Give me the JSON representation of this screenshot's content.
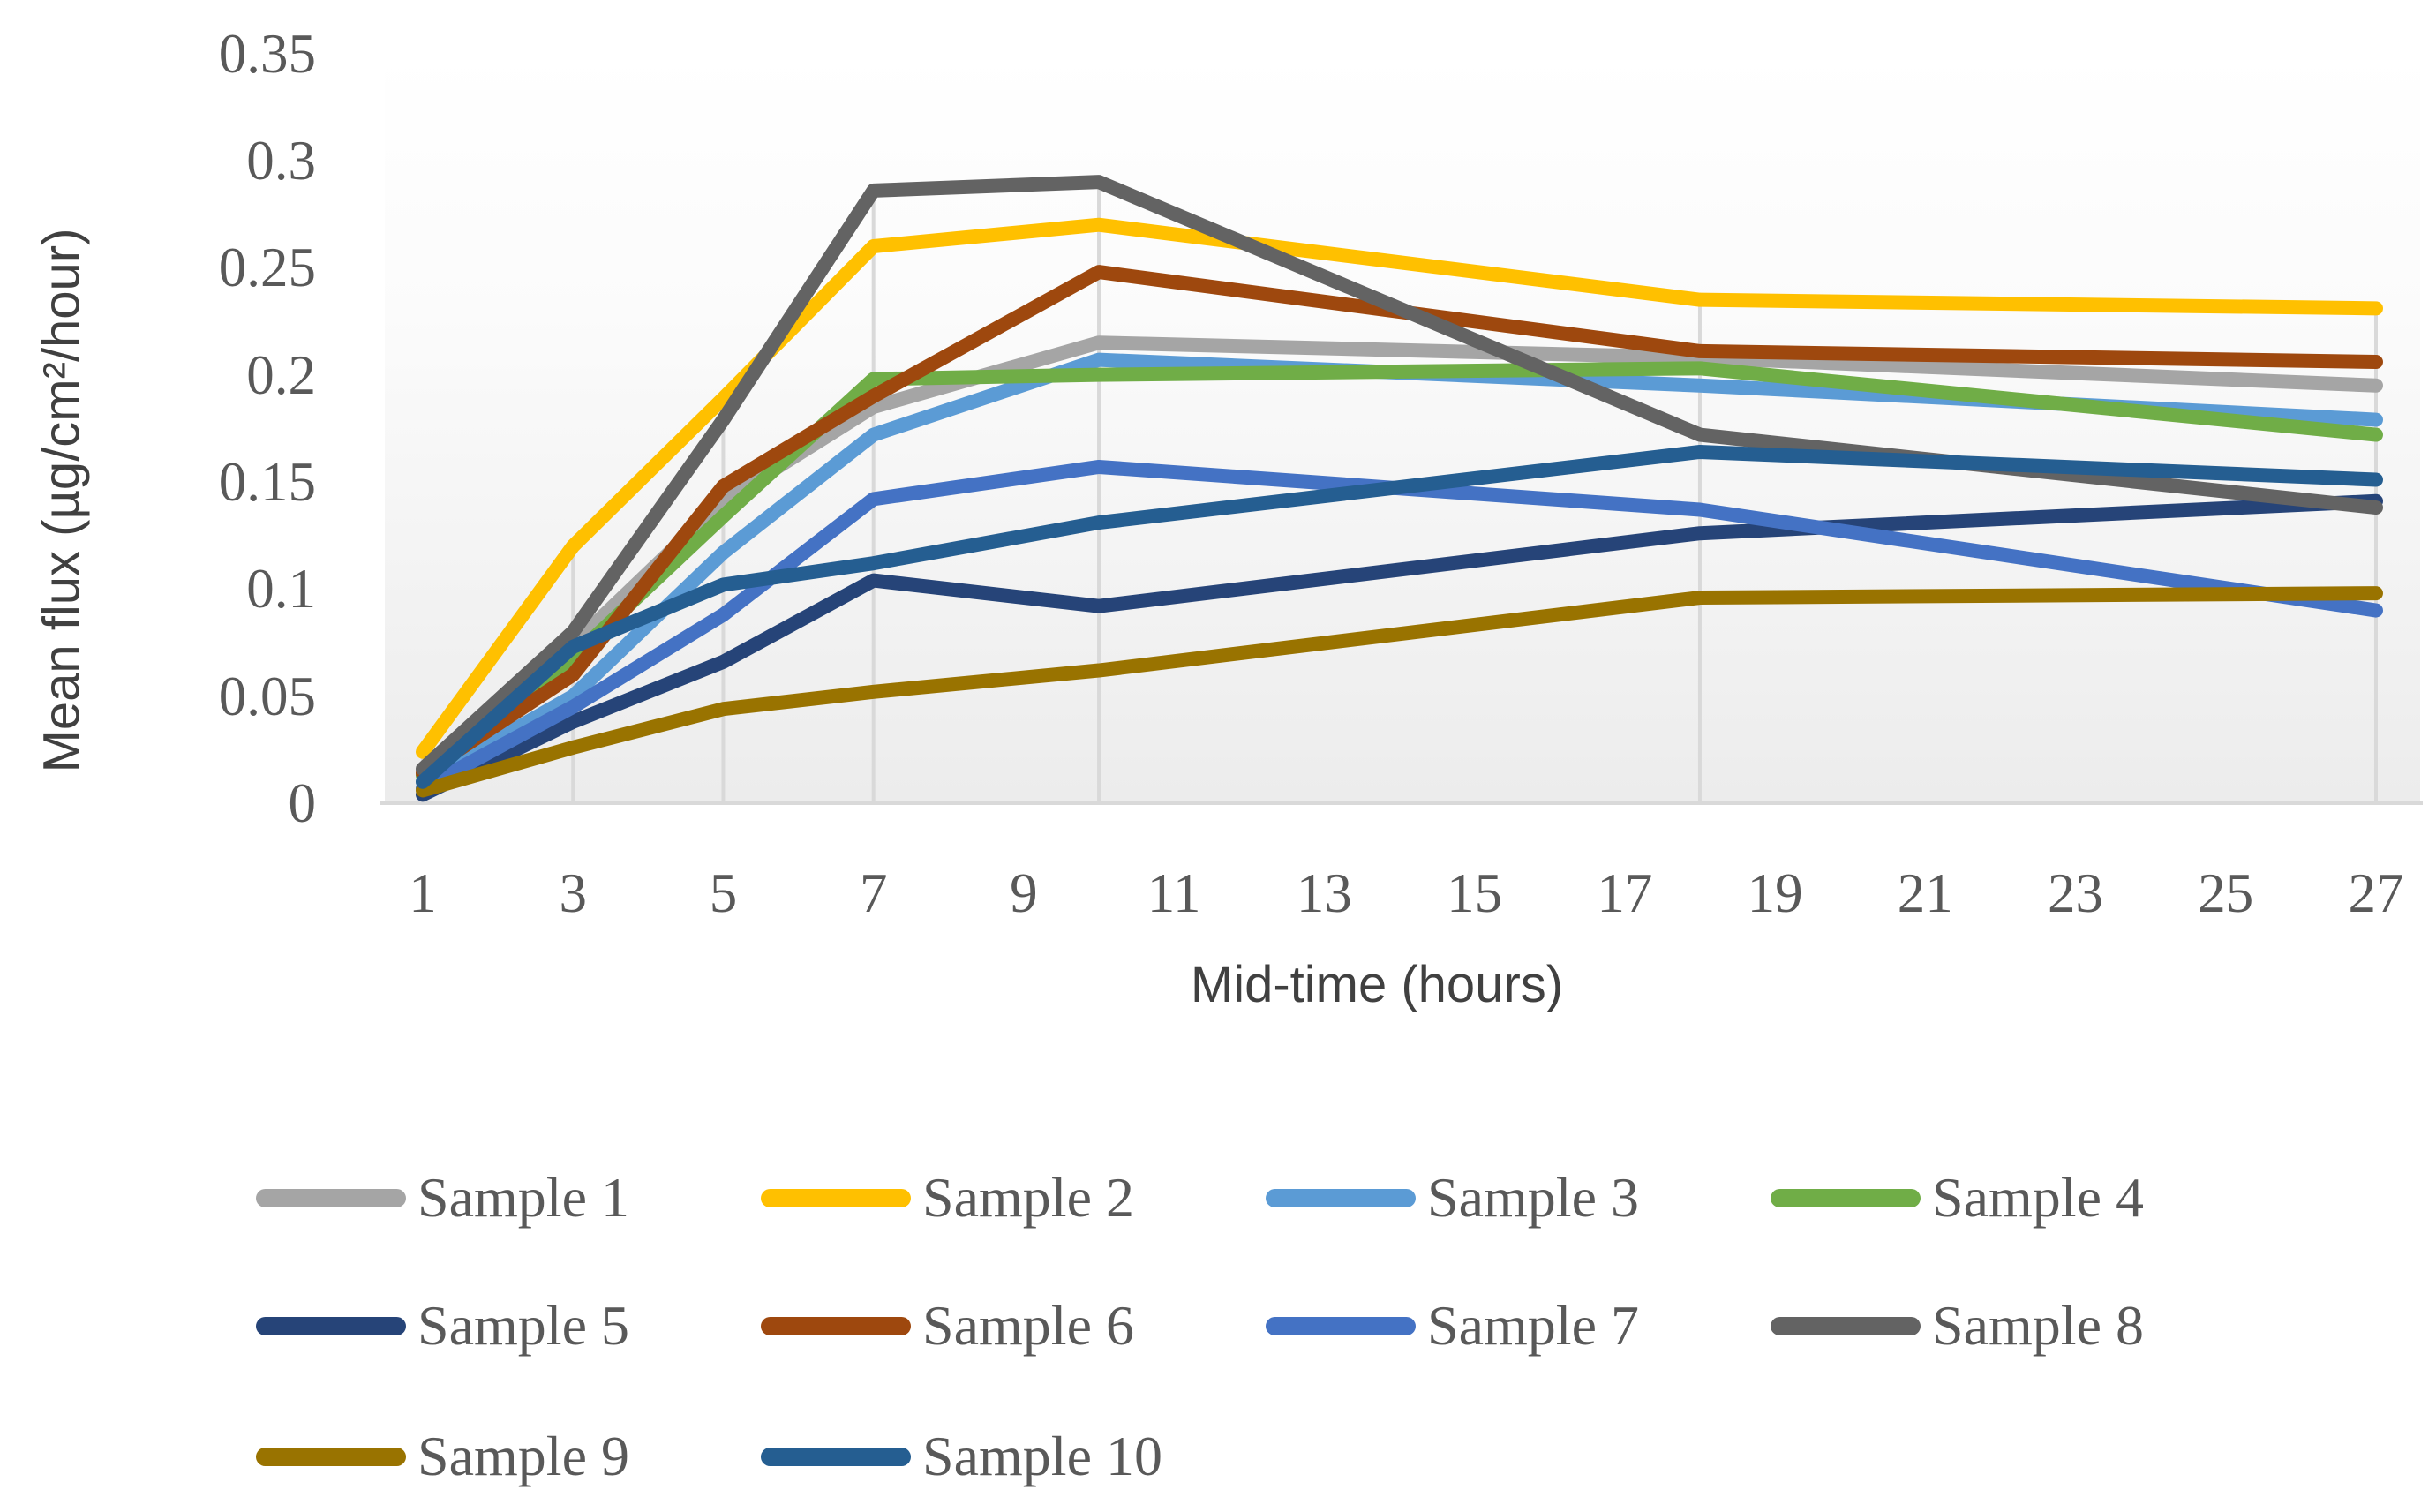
{
  "chart_data": {
    "type": "line",
    "title": "",
    "xlabel": "Mid-time (hours)",
    "ylabel": "Mean flux (µg/cm²/hour)",
    "x": [
      1,
      3,
      5,
      7,
      10,
      18,
      27
    ],
    "x_axis_tick_labels": [
      "1",
      "3",
      "5",
      "7",
      "9",
      "11",
      "13",
      "15",
      "17",
      "19",
      "21",
      "23",
      "25",
      "27"
    ],
    "x_axis_tick_values": [
      1,
      3,
      5,
      7,
      9,
      11,
      13,
      15,
      17,
      19,
      21,
      23,
      25,
      27
    ],
    "y_axis_tick_labels": [
      "0",
      "0.05",
      "0.1",
      "0.15",
      "0.2",
      "0.25",
      "0.3",
      "0.35"
    ],
    "y_axis_tick_values": [
      0,
      0.05,
      0.1,
      0.15,
      0.2,
      0.25,
      0.3,
      0.35
    ],
    "xlim": [
      0.5,
      27.5
    ],
    "ylim": [
      0,
      0.35
    ],
    "grid": "vertical drop lines at each data x position, no horizontal gridlines",
    "legend_position": "bottom",
    "axis_line_color": "#d9d9d9",
    "tick_text_color": "#595959",
    "series": [
      {
        "name": "Sample 1",
        "color": "#A5A5A5",
        "values": [
          0.015,
          0.074,
          0.141,
          0.185,
          0.215,
          0.208,
          0.195
        ]
      },
      {
        "name": "Sample 2",
        "color": "#FFC000",
        "values": [
          0.024,
          0.12,
          0.189,
          0.26,
          0.27,
          0.235,
          0.231
        ]
      },
      {
        "name": "Sample 3",
        "color": "#5B9BD5",
        "values": [
          0.01,
          0.05,
          0.117,
          0.172,
          0.207,
          0.195,
          0.179
        ]
      },
      {
        "name": "Sample 4",
        "color": "#70AD47",
        "values": [
          0.013,
          0.068,
          0.134,
          0.198,
          0.2,
          0.203,
          0.172
        ]
      },
      {
        "name": "Sample 5",
        "color": "#264478",
        "values": [
          0.004,
          0.038,
          0.066,
          0.104,
          0.092,
          0.126,
          0.141
        ]
      },
      {
        "name": "Sample 6",
        "color": "#9E480E",
        "values": [
          0.014,
          0.06,
          0.148,
          0.19,
          0.248,
          0.211,
          0.206
        ]
      },
      {
        "name": "Sample 7",
        "color": "#4472C4",
        "values": [
          0.007,
          0.045,
          0.088,
          0.142,
          0.157,
          0.137,
          0.09
        ]
      },
      {
        "name": "Sample 8",
        "color": "#636363",
        "values": [
          0.016,
          0.08,
          0.179,
          0.286,
          0.29,
          0.172,
          0.138
        ]
      },
      {
        "name": "Sample 9",
        "color": "#997300",
        "values": [
          0.006,
          0.026,
          0.044,
          0.052,
          0.062,
          0.096,
          0.098
        ]
      },
      {
        "name": "Sample 10",
        "color": "#255E91",
        "values": [
          0.01,
          0.073,
          0.102,
          0.112,
          0.131,
          0.164,
          0.151
        ]
      }
    ]
  }
}
